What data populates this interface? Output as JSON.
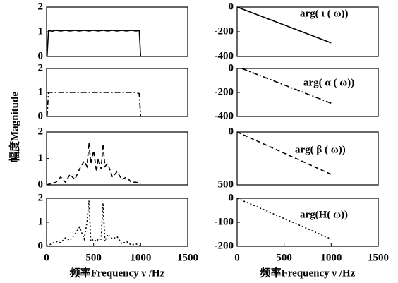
{
  "chart_data": [
    {
      "type": "line",
      "linestyle": "solid",
      "color": "#000000",
      "xlim": [
        0,
        1500
      ],
      "ylim": [
        0,
        2
      ],
      "yticks": [
        0,
        1,
        2
      ],
      "x": [
        5,
        20,
        60,
        100,
        150,
        200,
        250,
        300,
        350,
        400,
        450,
        500,
        550,
        600,
        650,
        700,
        750,
        800,
        850,
        900,
        950,
        985,
        1000
      ],
      "values": [
        0,
        1.05,
        1.02,
        1.06,
        1.03,
        1.06,
        1.03,
        1.06,
        1.03,
        1.06,
        1.03,
        1.06,
        1.03,
        1.06,
        1.03,
        1.06,
        1.03,
        1.06,
        1.03,
        1.06,
        1.03,
        1.05,
        0
      ]
    },
    {
      "type": "line",
      "linestyle": "dashdot",
      "color": "#000000",
      "xlim": [
        0,
        1500
      ],
      "ylim": [
        0,
        2
      ],
      "yticks": [
        0,
        1,
        2
      ],
      "x": [
        5,
        20,
        200,
        400,
        600,
        800,
        950,
        985,
        1000
      ],
      "values": [
        0,
        1.0,
        1.0,
        1.0,
        1.0,
        1.0,
        1.0,
        0.95,
        0
      ]
    },
    {
      "type": "line",
      "linestyle": "dashed",
      "color": "#000000",
      "xlim": [
        0,
        1500
      ],
      "ylim": [
        0,
        2
      ],
      "yticks": [
        0,
        1,
        2
      ],
      "x": [
        0,
        50,
        100,
        150,
        200,
        250,
        300,
        350,
        400,
        430,
        450,
        470,
        500,
        530,
        550,
        580,
        600,
        620,
        650,
        700,
        750,
        800,
        850,
        900,
        950,
        1000
      ],
      "values": [
        0,
        0.05,
        0.1,
        0.3,
        0.1,
        0.4,
        0.2,
        0.6,
        0.9,
        0.7,
        1.6,
        0.8,
        1.3,
        0.5,
        1.0,
        0.6,
        1.55,
        0.7,
        0.8,
        0.3,
        0.5,
        0.2,
        0.3,
        0.1,
        0.1,
        0.05
      ]
    },
    {
      "type": "line",
      "linestyle": "dotted",
      "color": "#000000",
      "xlim": [
        0,
        1500
      ],
      "ylim": [
        0,
        2
      ],
      "yticks": [
        0,
        1,
        2
      ],
      "xticks": [
        0,
        500,
        1000,
        1500
      ],
      "xlabel": "频率Frequency ν /Hz",
      "ylabel": "幅度Magnitude",
      "x": [
        0,
        50,
        100,
        150,
        200,
        250,
        300,
        350,
        400,
        430,
        450,
        470,
        500,
        530,
        550,
        580,
        600,
        620,
        650,
        700,
        750,
        800,
        850,
        900,
        950,
        1000
      ],
      "values": [
        0,
        0.1,
        0.2,
        0.15,
        0.35,
        0.25,
        0.5,
        0.8,
        0.3,
        1.0,
        1.9,
        0.2,
        0.3,
        0.2,
        0.3,
        0.3,
        1.8,
        0.2,
        0.5,
        0.3,
        0.4,
        0.1,
        0.2,
        0.05,
        0.1,
        0
      ]
    },
    {
      "type": "line",
      "linestyle": "solid",
      "color": "#000000",
      "xlim": [
        0,
        1500
      ],
      "ylim": [
        -400,
        0
      ],
      "yticks": [
        0,
        -200,
        -400
      ],
      "annotation": "arg( ι ( ω))",
      "x": [
        0,
        1000
      ],
      "values": [
        0,
        -290
      ]
    },
    {
      "type": "line",
      "linestyle": "dashdot",
      "color": "#000000",
      "xlim": [
        0,
        1500
      ],
      "ylim": [
        -400,
        0
      ],
      "yticks": [
        0,
        -200,
        -400
      ],
      "annotation": "arg( α ( ω))",
      "x": [
        50,
        1000
      ],
      "values": [
        0,
        -290
      ]
    },
    {
      "type": "line",
      "linestyle": "dashed",
      "color": "#000000",
      "xlim": [
        0,
        1500
      ],
      "ylim": [
        -500,
        0
      ],
      "yticks": [
        0,
        {
          "value": -500,
          "label": "500"
        }
      ],
      "annotation": "arg( β ( ω))",
      "x": [
        0,
        1000
      ],
      "values": [
        0,
        -400
      ]
    },
    {
      "type": "line",
      "linestyle": "dotted",
      "color": "#000000",
      "xlim": [
        0,
        1500
      ],
      "ylim": [
        -200,
        0
      ],
      "yticks": [
        0,
        -100,
        -200
      ],
      "xticks": [
        0,
        500,
        1000,
        1500
      ],
      "annotation": "arg(H( ω))",
      "xlabel": "频率Frequency ν /Hz",
      "x": [
        0,
        300,
        1000
      ],
      "values": [
        0,
        -50,
        -170
      ]
    }
  ]
}
